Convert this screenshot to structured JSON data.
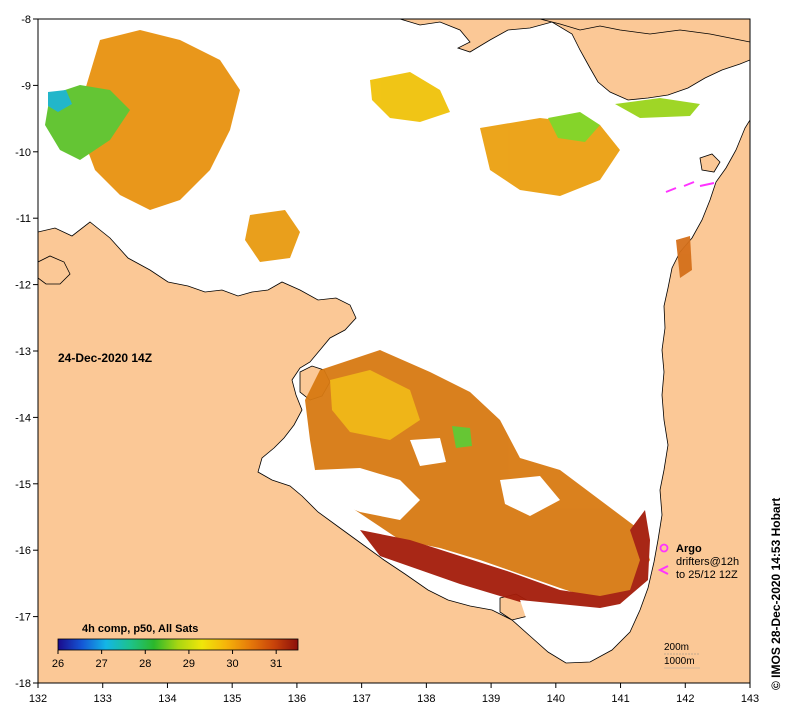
{
  "map": {
    "lon_range": [
      132,
      143
    ],
    "lat_range": [
      -18,
      -8
    ],
    "x_tick_labels": [
      "132",
      "133",
      "134",
      "135",
      "136",
      "137",
      "138",
      "139",
      "140",
      "141",
      "142",
      "143"
    ],
    "y_tick_labels": [
      "-8",
      "-9",
      "-10",
      "-11",
      "-12",
      "-13",
      "-14",
      "-15",
      "-16",
      "-17",
      "-18"
    ],
    "colors": {
      "land": "#fbc896",
      "ocean": "#ffffff",
      "coast": "#000000",
      "argo": "#ff33ff"
    }
  },
  "date_label": "24-Dec-2020 14Z",
  "colorbar": {
    "title": "4h comp, p50, All Sats",
    "tick_labels": [
      "26",
      "27",
      "28",
      "29",
      "30",
      "31"
    ],
    "range": [
      26,
      31.5
    ],
    "stops": [
      "#1a0a8c",
      "#1457d6",
      "#13b6e6",
      "#1dc28c",
      "#2bb82b",
      "#a8d612",
      "#f0e60a",
      "#f5b40a",
      "#e67a0a",
      "#c8430a",
      "#8c0f0a"
    ]
  },
  "legend": {
    "argo_label": "Argo",
    "drifters_label": "drifters@12h",
    "drifters_until": "to 25/12 12Z",
    "depth_200": "200m",
    "depth_1000": "1000m"
  },
  "credit": "© IMOS 28-Dec-2020 14:53 Hobart"
}
